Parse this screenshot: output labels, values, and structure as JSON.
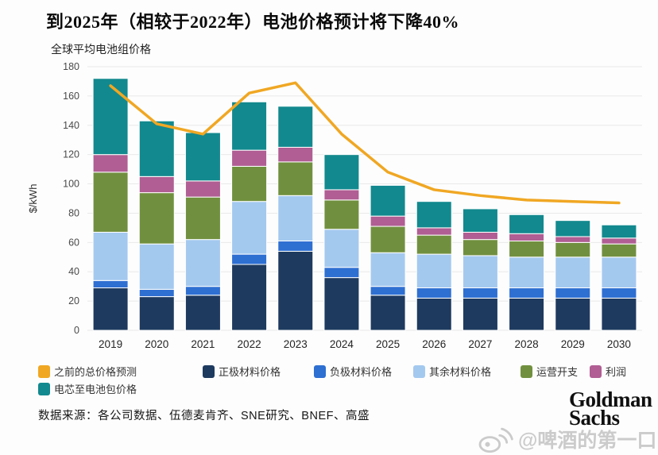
{
  "header": {
    "title": "到2025年（相较于2022年）电池价格预计将下降40%",
    "subtitle": "全球平均电池组价格"
  },
  "chart_data": {
    "type": "bar",
    "subtype": "stacked-bars-with-line-overlay",
    "title": "全球平均电池组价格",
    "xlabel": "",
    "ylabel": "$/kWh",
    "ylim": [
      0,
      180
    ],
    "ytick_step": 20,
    "grid": true,
    "legend_position": "bottom",
    "categories": [
      "2019",
      "2020",
      "2021",
      "2022",
      "2023",
      "2024",
      "2025",
      "2026",
      "2027",
      "2028",
      "2029",
      "2030"
    ],
    "series": [
      {
        "name": "正极材料价格",
        "color": "#1e3a5f",
        "values": [
          29,
          23,
          24,
          45,
          54,
          36,
          24,
          22,
          22,
          22,
          22,
          22
        ]
      },
      {
        "name": "负极材料价格",
        "color": "#2e6fd2",
        "values": [
          5,
          5,
          6,
          7,
          7,
          7,
          6,
          7,
          7,
          7,
          7,
          7
        ]
      },
      {
        "name": "其余材料价格",
        "color": "#a4c9ef",
        "values": [
          33,
          31,
          32,
          36,
          31,
          26,
          23,
          23,
          22,
          21,
          21,
          21
        ]
      },
      {
        "name": "运营开支",
        "color": "#71903f",
        "values": [
          41,
          35,
          29,
          24,
          23,
          20,
          18,
          13,
          11,
          11,
          10,
          9
        ]
      },
      {
        "name": "利润",
        "color": "#b05e93",
        "values": [
          12,
          11,
          11,
          11,
          10,
          7,
          7,
          5,
          5,
          5,
          4,
          4
        ]
      },
      {
        "name": "电芯至电池包价格",
        "color": "#12898e",
        "values": [
          52,
          38,
          33,
          33,
          28,
          24,
          21,
          18,
          16,
          13,
          11,
          9
        ]
      }
    ],
    "stack_totals": [
      172,
      143,
      135,
      156,
      153,
      120,
      99,
      88,
      83,
      79,
      75,
      72
    ],
    "line_series": {
      "name": "之前的总价格预测",
      "color": "#f0a723",
      "values": [
        167,
        141,
        134,
        162,
        169,
        134,
        108,
        96,
        92,
        89,
        88,
        87
      ]
    }
  },
  "footer": {
    "source": "数据来源：各公司数据、伍德麦肯齐、SNE研究、BNEF、高盛"
  },
  "brand": {
    "line1": "Goldman",
    "line2": "Sachs"
  },
  "watermark": {
    "text": "@啤酒的第一口"
  }
}
